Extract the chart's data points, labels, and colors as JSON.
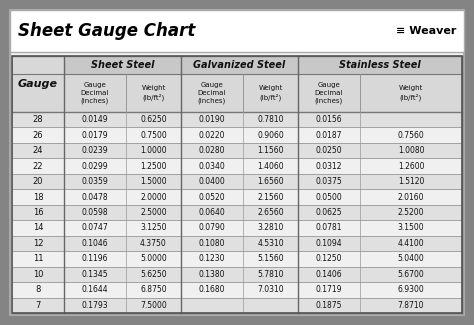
{
  "title": "Sheet Gauge Chart",
  "bg_outer": "#848484",
  "bg_inner": "#ffffff",
  "title_bg": "#ffffff",
  "header_bg": "#c8c8c8",
  "subheader_bg": "#d8d8d8",
  "row_bg_even": "#e0e0e0",
  "row_bg_odd": "#f0f0f0",
  "gauges": [
    28,
    26,
    24,
    22,
    20,
    18,
    16,
    14,
    12,
    11,
    10,
    8,
    7
  ],
  "sheet_steel_dec": [
    "0.0149",
    "0.0179",
    "0.0239",
    "0.0299",
    "0.0359",
    "0.0478",
    "0.0598",
    "0.0747",
    "0.1046",
    "0.1196",
    "0.1345",
    "0.1644",
    "0.1793"
  ],
  "sheet_steel_wt": [
    "0.6250",
    "0.7500",
    "1.0000",
    "1.2500",
    "1.5000",
    "2.0000",
    "2.5000",
    "3.1250",
    "4.3750",
    "5.0000",
    "5.6250",
    "6.8750",
    "7.5000"
  ],
  "galv_dec": [
    "0.0190",
    "0.0220",
    "0.0280",
    "0.0340",
    "0.0400",
    "0.0520",
    "0.0640",
    "0.0790",
    "0.1080",
    "0.1230",
    "0.1380",
    "0.1680",
    ""
  ],
  "galv_wt": [
    "0.7810",
    "0.9060",
    "1.1560",
    "1.4060",
    "1.6560",
    "2.1560",
    "2.6560",
    "3.2810",
    "4.5310",
    "5.1560",
    "5.7810",
    "7.0310",
    ""
  ],
  "stain_dec": [
    "0.0156",
    "0.0187",
    "0.0250",
    "0.0312",
    "0.0375",
    "0.0500",
    "0.0625",
    "0.0781",
    "0.1094",
    "0.1250",
    "0.1406",
    "0.1719",
    "0.1875"
  ],
  "stain_wt": [
    "",
    "0.7560",
    "1.0080",
    "1.2600",
    "1.5120",
    "2.0160",
    "2.5200",
    "3.1500",
    "4.4100",
    "5.0400",
    "5.6700",
    "6.9300",
    "7.8710"
  ]
}
